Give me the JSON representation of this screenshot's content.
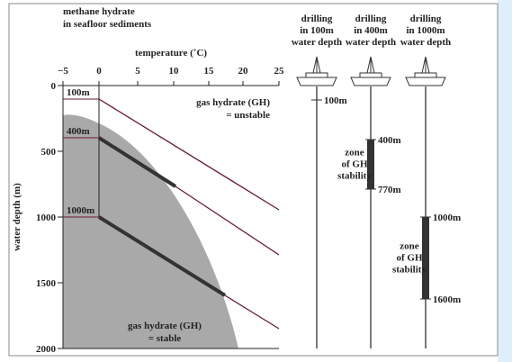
{
  "header": {
    "title_line1": "methane hydrate",
    "title_line2": "in seafloor sediments"
  },
  "temperature_axis": {
    "label": "temperature (˚C)",
    "ticks": [
      "−5",
      "0",
      "5",
      "10",
      "15",
      "20",
      "25"
    ]
  },
  "depth_axis": {
    "label": "water depth (m)",
    "ticks": [
      "0",
      "500",
      "1000",
      "1500",
      "2000"
    ]
  },
  "region_labels": {
    "unstable_line1": "gas hydrate (GH)",
    "unstable_line2": "= unstable",
    "stable_line1": "gas hydrate (GH)",
    "stable_line2": "= stable"
  },
  "seafloor_labels": [
    "100m",
    "400m",
    "1000m"
  ],
  "columns": [
    {
      "title": [
        "drilling",
        "in 100m",
        "water depth"
      ],
      "marks": [
        "100m"
      ],
      "zone": []
    },
    {
      "title": [
        "drilling",
        "in 400m",
        "water depth"
      ],
      "marks": [
        "400m",
        "770m"
      ],
      "zone": [
        "zone",
        "of GH",
        "stability"
      ]
    },
    {
      "title": [
        "drilling",
        "in 1000m",
        "water depth"
      ],
      "marks": [
        "1000m",
        "1600m"
      ],
      "zone": [
        "zone",
        "of GH",
        "stability"
      ]
    }
  ]
}
